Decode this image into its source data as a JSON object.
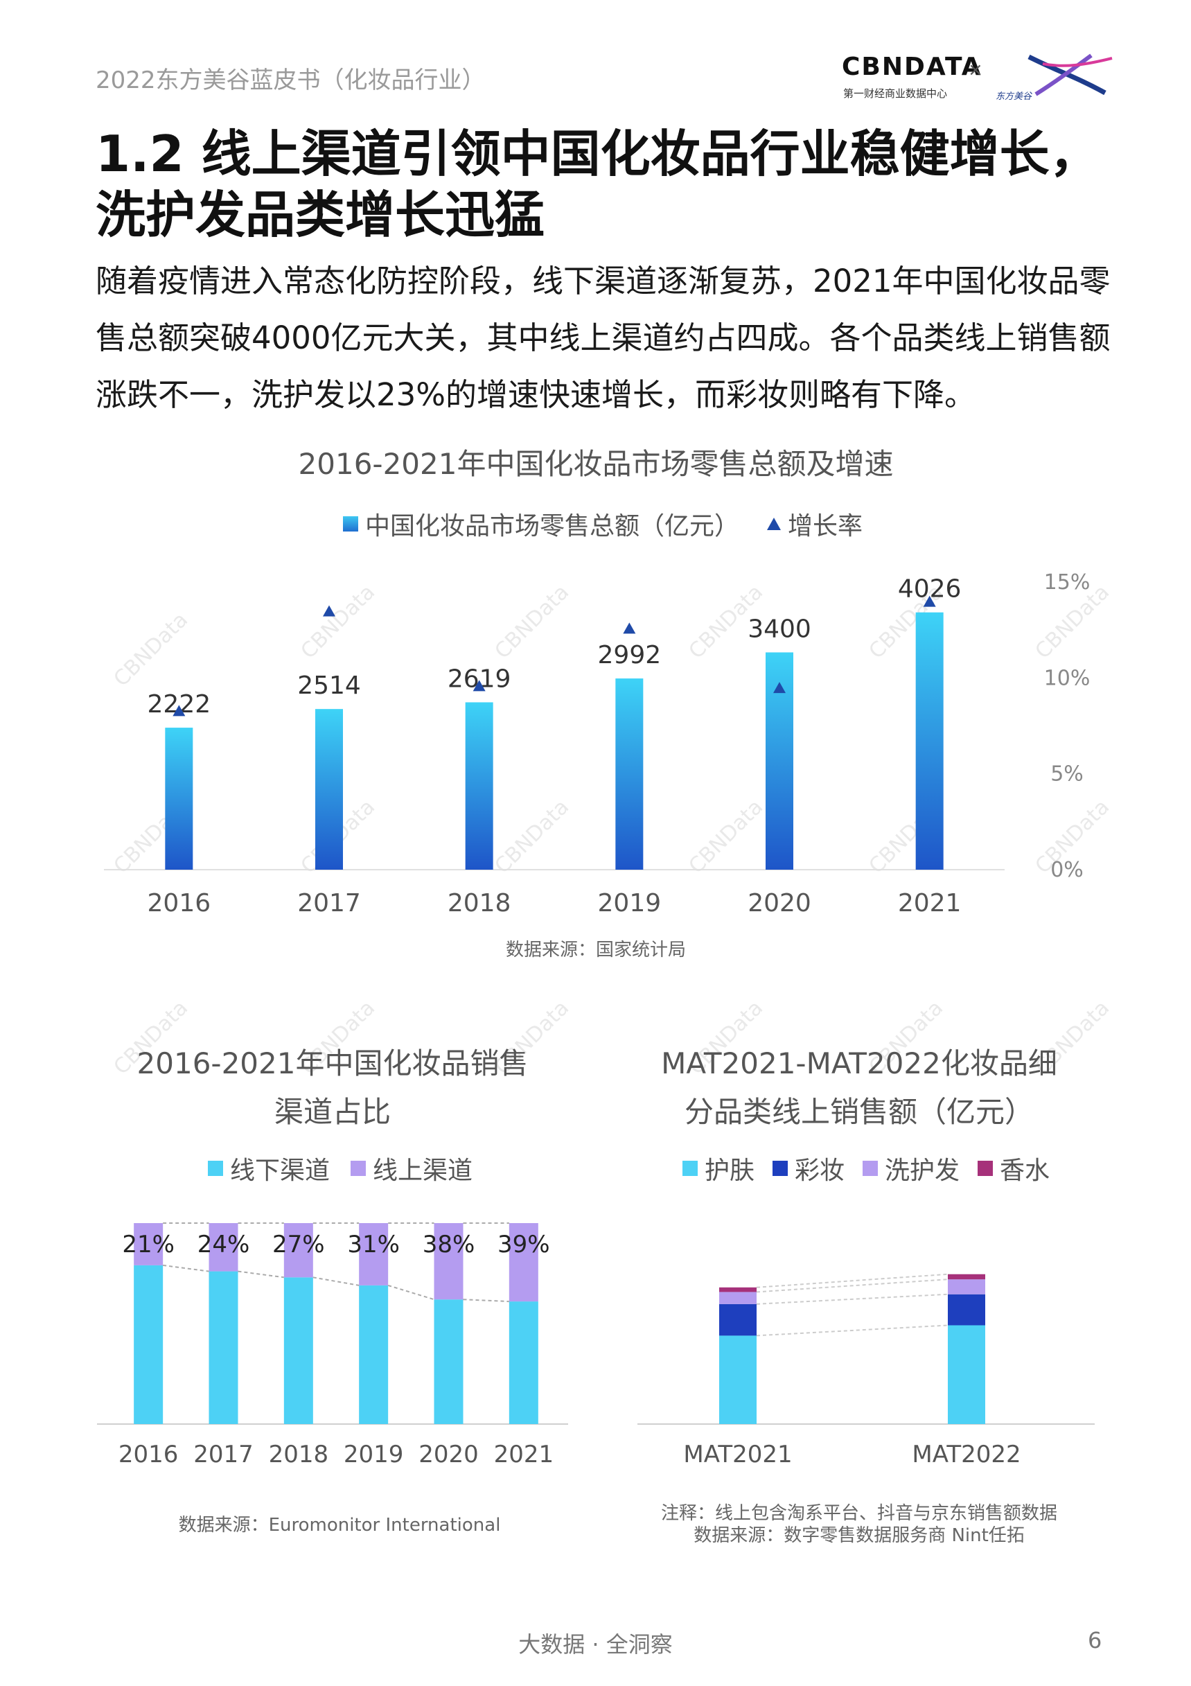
{
  "header": {
    "doc_title": "2022东方美谷蓝皮书（化妆品行业）",
    "logo_text": "CBNDATA",
    "logo_sub": "第一财经商业数据中心",
    "logo_x": "×",
    "partner_text": "东方美谷"
  },
  "section": {
    "title": "1.2  线上渠道引领中国化妆品行业稳健增长，洗护发品类增长迅猛",
    "intro": "随着疫情进入常态化防控阶段，线下渠道逐渐复苏，2021年中国化妆品零售总额突破4000亿元大关，其中线上渠道约占四成。各个品类线上销售额涨跌不一，洗护发以23%的增速快速增长，而彩妆则略有下降。"
  },
  "watermark": "CBNData",
  "chart1": {
    "title": "2016-2021年中国化妆品市场零售总额及增速",
    "legend_bar": "中国化妆品市场零售总额（亿元）",
    "legend_tri": "增长率",
    "source": "数据来源：国家统计局"
  },
  "chart2": {
    "title_line1": "2016-2021年中国化妆品销售",
    "title_line2": "渠道占比",
    "legend": [
      "线下渠道",
      "线上渠道"
    ],
    "source": "数据来源：Euromonitor International"
  },
  "chart3": {
    "title_line1": "MAT2021-MAT2022化妆品细",
    "title_line2": "分品类线上销售额（亿元）",
    "legend": [
      "护肤",
      "彩妆",
      "洗护发",
      "香水"
    ],
    "note": "注释：线上包含淘系平台、抖音与京东销售额数据",
    "source": "数据来源：数字零售数据服务商 Nint任拓"
  },
  "chart_data": [
    {
      "type": "bar",
      "title": "2016-2021年中国化妆品市场零售总额及增速",
      "categories": [
        "2016",
        "2017",
        "2018",
        "2019",
        "2020",
        "2021"
      ],
      "series": [
        {
          "name": "中国化妆品市场零售总额（亿元）",
          "values": [
            2222,
            2514,
            2619,
            2992,
            3400,
            4026
          ]
        },
        {
          "name": "增长率",
          "values": [
            8.3,
            13.5,
            9.6,
            12.6,
            9.5,
            14.0
          ],
          "axis": "right"
        }
      ],
      "ylim_left": [
        0,
        4500
      ],
      "ylim_right": [
        0,
        15
      ],
      "right_ticks": [
        "0%",
        "5%",
        "10%",
        "15%"
      ],
      "bar_color": "#3ec7f2",
      "marker_color": "#1f4aa8"
    },
    {
      "type": "bar",
      "stacked": true,
      "title": "2016-2021年中国化妆品销售渠道占比",
      "categories": [
        "2016",
        "2017",
        "2018",
        "2019",
        "2020",
        "2021"
      ],
      "series": [
        {
          "name": "线下渠道",
          "values": [
            79,
            76,
            73,
            69,
            62,
            61
          ],
          "color": "#4dd1f5"
        },
        {
          "name": "线上渠道",
          "values": [
            21,
            24,
            27,
            31,
            38,
            39
          ],
          "color": "#b49cf0"
        }
      ],
      "labels": [
        "21%",
        "24%",
        "27%",
        "31%",
        "38%",
        "39%"
      ],
      "ylim": [
        0,
        100
      ]
    },
    {
      "type": "bar",
      "stacked": true,
      "title": "MAT2021-MAT2022化妆品细分品类线上销售额（亿元）",
      "categories": [
        "MAT2021",
        "MAT2022"
      ],
      "series": [
        {
          "name": "护肤",
          "values": [
            1540,
            1720
          ],
          "color": "#4dd1f5"
        },
        {
          "name": "彩妆",
          "values": [
            550,
            540
          ],
          "color": "#1e3fbe"
        },
        {
          "name": "洗护发",
          "values": [
            210,
            260
          ],
          "color": "#b49cf0"
        },
        {
          "name": "香水",
          "values": [
            80,
            90
          ],
          "color": "#a6317a"
        }
      ],
      "ylim": [
        0,
        3500
      ]
    }
  ]
}
